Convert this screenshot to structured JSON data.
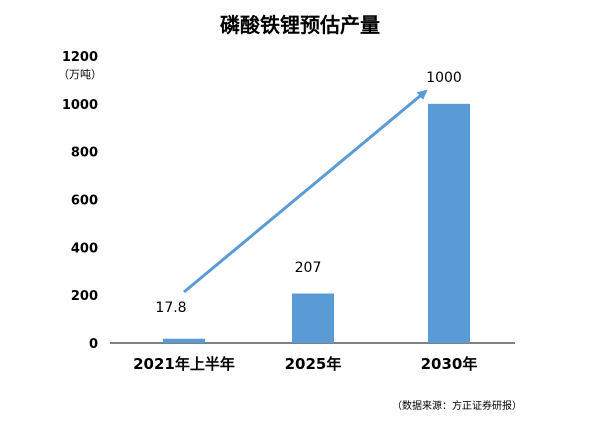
{
  "chart_data": {
    "type": "bar",
    "title": "磷酸铁锂预估产量",
    "unit_label": "（万吨）",
    "categories": [
      "2021年上半年",
      "2025年",
      "2030年"
    ],
    "values": [
      17.8,
      207,
      1000
    ],
    "value_labels": [
      "17.8",
      "207",
      "1000"
    ],
    "ylim": [
      0,
      1200
    ],
    "yticks": [
      0,
      200,
      400,
      600,
      800,
      1000,
      1200
    ],
    "grid": false,
    "legend": "none",
    "trend_arrow": {
      "from_category": "2021年上半年",
      "to_category": "2030年"
    },
    "source": "（数据来源：方正证券研报）",
    "colors": {
      "bar": "#5B9BD5",
      "arrow": "#5B9BD5",
      "axis": "#000000",
      "text": "#000000"
    }
  }
}
